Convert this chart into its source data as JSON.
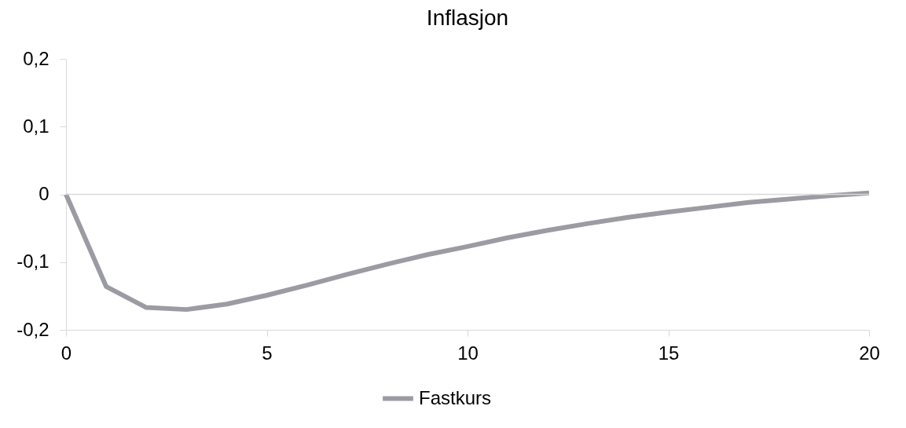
{
  "chart_data": {
    "type": "line",
    "title": "Inflasjon",
    "x": [
      0,
      1,
      2,
      3,
      4,
      5,
      6,
      7,
      8,
      9,
      10,
      11,
      12,
      13,
      14,
      15,
      16,
      17,
      18,
      19,
      20
    ],
    "series": [
      {
        "name": "Fastkurs",
        "color": "#9b9ba3",
        "values": [
          0,
          -0.136,
          -0.167,
          -0.17,
          -0.162,
          -0.149,
          -0.134,
          -0.118,
          -0.103,
          -0.089,
          -0.077,
          -0.064,
          -0.053,
          -0.043,
          -0.034,
          -0.026,
          -0.019,
          -0.012,
          -0.007,
          -0.002,
          0.002
        ]
      }
    ],
    "xlim": [
      0,
      20
    ],
    "xticks": [
      0,
      5,
      10,
      15,
      20
    ],
    "ylim": [
      -0.2,
      0.2
    ],
    "yticks": [
      {
        "value": -0.2,
        "label": "-0,2"
      },
      {
        "value": -0.1,
        "label": "-0,1"
      },
      0,
      {
        "value": 0.1,
        "label": "0,1"
      },
      {
        "value": 0.2,
        "label": "0,2"
      }
    ],
    "ref_lines": [
      {
        "axis": "y",
        "value": 0,
        "color": "#d9d9d9"
      }
    ],
    "legend": "bottom",
    "grid": false,
    "marker": "none",
    "line_style": "solid"
  }
}
